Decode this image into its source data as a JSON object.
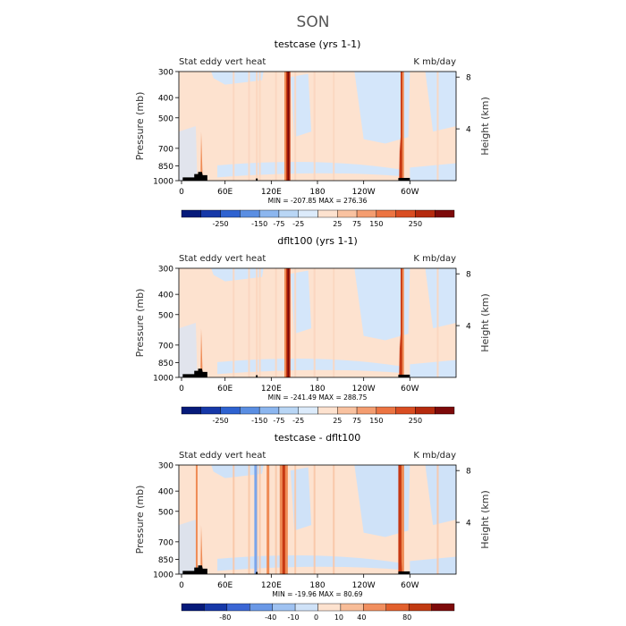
{
  "figure_title": "SON",
  "colors": {
    "blue_dark": "#0a1a8c",
    "blue_mid": "#3b66d4",
    "blue_light": "#b9d6f5",
    "blue_pale": "#d6e8fa",
    "peach": "#fde2cf",
    "orange": "#ef8b55",
    "red": "#c73812",
    "red_dark": "#7d0a0a",
    "land": "#000000"
  },
  "chart_data": [
    {
      "type": "heatmap",
      "title": "testcase (yrs 1-1)",
      "left_label": "Stat eddy vert heat",
      "right_label": "K mb/day",
      "ylabel": "Pressure (mb)",
      "y2label": "Height (km)",
      "x_ticks": [
        "0",
        "60E",
        "120E",
        "180",
        "120W",
        "60W"
      ],
      "y_ticks": [
        "300",
        "400",
        "500",
        "700",
        "850",
        "1000"
      ],
      "y2_ticks": [
        "8",
        "4"
      ],
      "stats": "MIN = -207.85   MAX = 276.36",
      "min": -207.85,
      "max": 276.36,
      "colorbar_labels": [
        "-250",
        "-150",
        "-75",
        "-25",
        "25",
        "75",
        "150",
        "250"
      ]
    },
    {
      "type": "heatmap",
      "title": "dflt100 (yrs 1-1)",
      "left_label": "Stat eddy vert heat",
      "right_label": "K mb/day",
      "ylabel": "Pressure (mb)",
      "y2label": "Height (km)",
      "x_ticks": [
        "0",
        "60E",
        "120E",
        "180",
        "120W",
        "60W"
      ],
      "y_ticks": [
        "300",
        "400",
        "500",
        "700",
        "850",
        "1000"
      ],
      "y2_ticks": [
        "8",
        "4"
      ],
      "stats": "MIN = -241.49   MAX = 288.75",
      "min": -241.49,
      "max": 288.75,
      "colorbar_labels": [
        "-250",
        "-150",
        "-75",
        "-25",
        "25",
        "75",
        "150",
        "250"
      ]
    },
    {
      "type": "heatmap",
      "title": "testcase - dflt100",
      "left_label": "Stat eddy vert heat",
      "right_label": "K mb/day",
      "ylabel": "Pressure (mb)",
      "y2label": "Height (km)",
      "x_ticks": [
        "0",
        "60E",
        "120E",
        "180",
        "120W",
        "60W"
      ],
      "y_ticks": [
        "300",
        "400",
        "500",
        "700",
        "850",
        "1000"
      ],
      "y2_ticks": [
        "8",
        "4"
      ],
      "stats": "MIN = -19.96   MAX = 80.69",
      "min": -19.96,
      "max": 80.69,
      "colorbar_labels": [
        "-80",
        "-40",
        "-10",
        "0",
        "10",
        "40",
        "80"
      ]
    }
  ]
}
